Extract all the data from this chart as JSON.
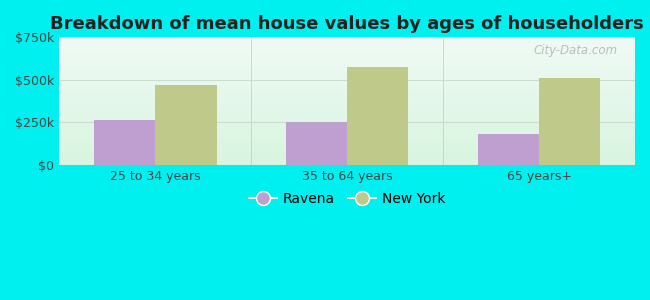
{
  "title": "Breakdown of mean house values by ages of householders",
  "categories": [
    "25 to 34 years",
    "35 to 64 years",
    "65 years+"
  ],
  "ravena_values": [
    265000,
    255000,
    180000
  ],
  "newyork_values": [
    470000,
    575000,
    510000
  ],
  "ravena_color": "#bf9fcf",
  "newyork_color": "#bec98a",
  "ylim": [
    0,
    750000
  ],
  "yticks": [
    0,
    250000,
    500000,
    750000
  ],
  "ytick_labels": [
    "$0",
    "$250k",
    "$500k",
    "$750k"
  ],
  "plot_bg_top": "#f0faf5",
  "plot_bg_bottom": "#d8f5e0",
  "outer_background": "#00f0f0",
  "legend_ravena": "Ravena",
  "legend_newyork": "New York",
  "bar_width": 0.32,
  "title_fontsize": 13,
  "tick_fontsize": 9,
  "legend_fontsize": 10,
  "grid_color": "#ccddcc",
  "watermark": "City-Data.com"
}
